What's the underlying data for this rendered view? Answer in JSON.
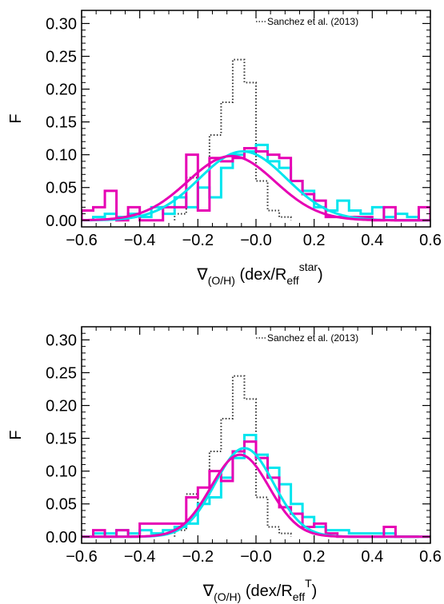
{
  "chart_data": [
    {
      "type": "line",
      "panel": "top",
      "ylabel": "F",
      "xlabel_main": "∇",
      "xlabel_sub": "(O/H)",
      "xlabel_unit_pre": "(dex/R",
      "xlabel_unit_sub": "eff",
      "xlabel_unit_sup": "star",
      "xlabel_unit_post": ")",
      "xlim": [
        -0.6,
        0.6
      ],
      "ylim": [
        -0.01,
        0.32
      ],
      "xticks": [
        "−0.6",
        "−0.4",
        "−0.2",
        "−0.0",
        "0.2",
        "0.4",
        "0.6"
      ],
      "yticks": [
        "0.00",
        "0.05",
        "0.10",
        "0.15",
        "0.20",
        "0.25",
        "0.30"
      ],
      "legend": "Sanchez et al. (2013)",
      "legend_position": "top-right",
      "series": [
        {
          "name": "Sanchez et al. (2013)",
          "style": "histogram",
          "color": "#333333",
          "dash": "dotted",
          "edges": [
            -0.28,
            -0.24,
            -0.2,
            -0.16,
            -0.12,
            -0.08,
            -0.04,
            0.0,
            0.04,
            0.08,
            0.12
          ],
          "values": [
            0.01,
            0.065,
            0.05,
            0.13,
            0.18,
            0.245,
            0.21,
            0.06,
            0.015,
            0.005
          ]
        },
        {
          "style": "histogram",
          "color": "#00e5ee",
          "edges": [
            -0.56,
            -0.52,
            -0.48,
            -0.44,
            -0.4,
            -0.36,
            -0.32,
            -0.28,
            -0.24,
            -0.2,
            -0.16,
            -0.12,
            -0.08,
            -0.04,
            0.0,
            0.04,
            0.08,
            0.12,
            0.16,
            0.2,
            0.24,
            0.28,
            0.32,
            0.36,
            0.4,
            0.44,
            0.48,
            0.52,
            0.56
          ],
          "values": [
            0.005,
            0.01,
            0.005,
            0.01,
            0.005,
            0.02,
            0.01,
            0.035,
            0.02,
            0.05,
            0.035,
            0.08,
            0.1,
            0.105,
            0.115,
            0.09,
            0.08,
            0.06,
            0.045,
            0.02,
            0.015,
            0.03,
            0.015,
            0.01,
            0.02,
            0.005,
            0.01,
            0.005
          ]
        },
        {
          "style": "histogram",
          "color": "#e600b4",
          "edges": [
            -0.6,
            -0.56,
            -0.52,
            -0.48,
            -0.44,
            -0.4,
            -0.36,
            -0.32,
            -0.28,
            -0.24,
            -0.2,
            -0.16,
            -0.12,
            -0.08,
            -0.04,
            0.0,
            0.04,
            0.08,
            0.12,
            0.16,
            0.2,
            0.24,
            0.28,
            0.32,
            0.36,
            0.4,
            0.44,
            0.48,
            0.52,
            0.56,
            0.6
          ],
          "values": [
            0.015,
            0.02,
            0.045,
            0.0,
            0.02,
            0.0,
            0.0,
            0.02,
            0.02,
            0.1,
            0.015,
            0.095,
            0.09,
            0.095,
            0.11,
            0.105,
            0.1,
            0.095,
            0.06,
            0.04,
            0.03,
            0.005,
            0.005,
            0.005,
            0.005,
            0.0,
            0.02,
            0.0,
            0.0,
            0.02
          ]
        },
        {
          "style": "gaussian",
          "color": "#00e5ee",
          "amplitude": 0.105,
          "mean": -0.045,
          "sigma": 0.15
        },
        {
          "style": "gaussian",
          "color": "#e600b4",
          "amplitude": 0.098,
          "mean": -0.085,
          "sigma": 0.15
        }
      ]
    },
    {
      "type": "line",
      "panel": "bottom",
      "ylabel": "F",
      "xlabel_main": "∇",
      "xlabel_sub": "(O/H)",
      "xlabel_unit_pre": "(dex/R",
      "xlabel_unit_sub": "eff",
      "xlabel_unit_sup": "T",
      "xlabel_unit_post": ")",
      "xlim": [
        -0.6,
        0.6
      ],
      "ylim": [
        -0.01,
        0.32
      ],
      "xticks": [
        "−0.6",
        "−0.4",
        "−0.2",
        "−0.0",
        "0.2",
        "0.4",
        "0.6"
      ],
      "yticks": [
        "0.00",
        "0.05",
        "0.10",
        "0.15",
        "0.20",
        "0.25",
        "0.30"
      ],
      "legend": "Sanchez et al. (2013)",
      "legend_position": "top-right",
      "series": [
        {
          "name": "Sanchez et al. (2013)",
          "style": "histogram",
          "color": "#333333",
          "dash": "dotted",
          "edges": [
            -0.28,
            -0.24,
            -0.2,
            -0.16,
            -0.12,
            -0.08,
            -0.04,
            0.0,
            0.04,
            0.08,
            0.12
          ],
          "values": [
            0.01,
            0.065,
            0.05,
            0.13,
            0.18,
            0.245,
            0.21,
            0.06,
            0.015,
            0.005
          ]
        },
        {
          "style": "histogram",
          "color": "#00e5ee",
          "edges": [
            -0.56,
            -0.52,
            -0.48,
            -0.44,
            -0.4,
            -0.36,
            -0.32,
            -0.28,
            -0.24,
            -0.2,
            -0.16,
            -0.12,
            -0.08,
            -0.04,
            0.0,
            0.04,
            0.08,
            0.12,
            0.16,
            0.2,
            0.24,
            0.28,
            0.32,
            0.36,
            0.4,
            0.44,
            0.48,
            0.52,
            0.56
          ],
          "values": [
            0.005,
            0.005,
            0.01,
            0.005,
            0.01,
            0.005,
            0.01,
            0.015,
            0.02,
            0.05,
            0.06,
            0.09,
            0.12,
            0.155,
            0.125,
            0.105,
            0.08,
            0.05,
            0.03,
            0.015,
            0.01,
            0.01,
            0.005,
            0.005,
            0.005,
            0.005,
            0.0,
            0.0
          ]
        },
        {
          "style": "histogram",
          "color": "#e600b4",
          "edges": [
            -0.56,
            -0.52,
            -0.48,
            -0.44,
            -0.4,
            -0.36,
            -0.32,
            -0.28,
            -0.24,
            -0.2,
            -0.16,
            -0.12,
            -0.08,
            -0.04,
            0.0,
            0.04,
            0.08,
            0.12,
            0.16,
            0.2,
            0.24,
            0.28,
            0.32,
            0.36,
            0.4,
            0.44,
            0.48,
            0.52,
            0.56
          ],
          "values": [
            0.01,
            0.0,
            0.01,
            0.0,
            0.02,
            0.02,
            0.02,
            0.02,
            0.06,
            0.075,
            0.1,
            0.085,
            0.13,
            0.145,
            0.12,
            0.09,
            0.045,
            0.035,
            0.015,
            0.02,
            0.005,
            0.0,
            0.0,
            0.0,
            0.0,
            0.015,
            0.0,
            0.0
          ]
        },
        {
          "style": "gaussian",
          "color": "#00e5ee",
          "amplitude": 0.135,
          "mean": -0.04,
          "sigma": 0.1
        },
        {
          "style": "gaussian",
          "color": "#e600b4",
          "amplitude": 0.125,
          "mean": -0.055,
          "sigma": 0.1
        }
      ]
    }
  ]
}
